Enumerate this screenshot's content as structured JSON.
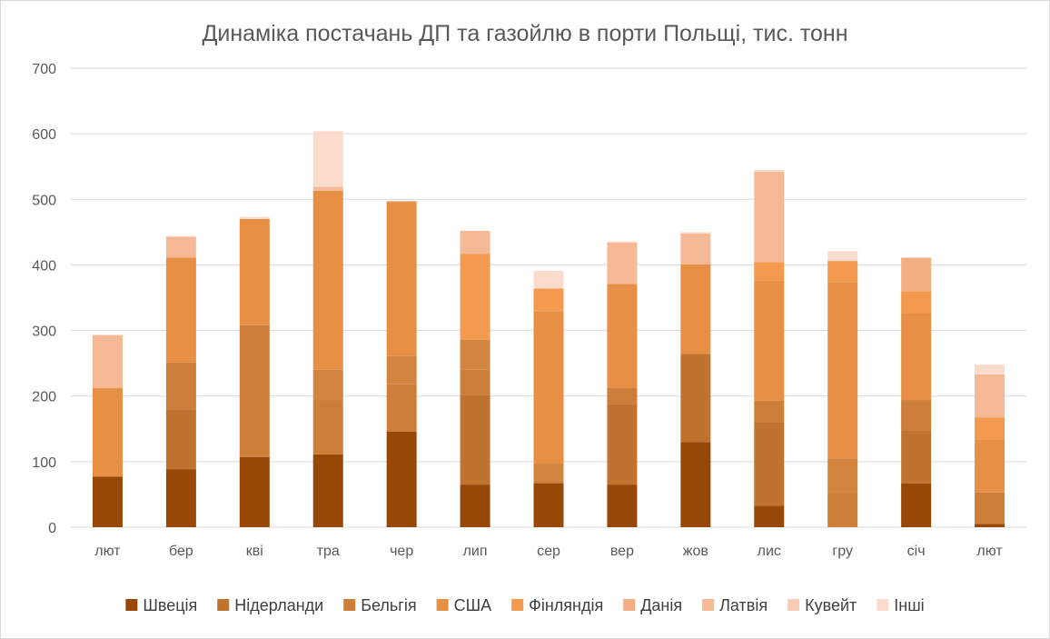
{
  "chart_data": {
    "type": "bar",
    "stacked": true,
    "title": "Динаміка постачань ДП та газойлю в порти Польщі, тис. тонн",
    "xlabel": "",
    "ylabel": "",
    "ylim": [
      0,
      700
    ],
    "yticks": [
      0,
      100,
      200,
      300,
      400,
      500,
      600,
      700
    ],
    "grid": true,
    "legend_position": "bottom",
    "categories": [
      "лют",
      "бер",
      "кві",
      "тра",
      "чер",
      "лип",
      "сер",
      "вер",
      "жов",
      "лис",
      "гру",
      "січ",
      "лют"
    ],
    "series": [
      {
        "name": "Швеція",
        "color": "#974706",
        "values": [
          77,
          88,
          107,
          111,
          146,
          65,
          67,
          65,
          130,
          33,
          0,
          67,
          5
        ]
      },
      {
        "name": "Нідерланди",
        "color": "#c0722f",
        "values": [
          0,
          92,
          0,
          0,
          0,
          137,
          0,
          123,
          134,
          127,
          0,
          80,
          0
        ]
      },
      {
        "name": "Бельгія",
        "color": "#cd7e39",
        "values": [
          0,
          71,
          201,
          83,
          72,
          38,
          3,
          25,
          0,
          33,
          52,
          47,
          48
        ]
      },
      {
        "name": "Бельгія",
        "color": "#d38540",
        "values": [
          0,
          0,
          0,
          46,
          43,
          46,
          27,
          0,
          0,
          0,
          53,
          0,
          0
        ]
      },
      {
        "name": "США",
        "color": "#e68f45",
        "values": [
          135,
          160,
          162,
          273,
          236,
          0,
          232,
          158,
          137,
          183,
          269,
          133,
          81
        ]
      },
      {
        "name": "Фінляндія",
        "color": "#f39a4e",
        "values": [
          0,
          0,
          0,
          0,
          0,
          131,
          35,
          0,
          0,
          28,
          32,
          33,
          33
        ]
      },
      {
        "name": "Данія",
        "color": "#f4ae83",
        "values": [
          0,
          0,
          0,
          0,
          0,
          0,
          0,
          0,
          0,
          0,
          0,
          51,
          0
        ]
      },
      {
        "name": "Латвія",
        "color": "#f6b995",
        "values": [
          81,
          32,
          0,
          6,
          0,
          35,
          0,
          63,
          47,
          138,
          0,
          0,
          66
        ]
      },
      {
        "name": "Кувейт",
        "color": "#f8ccb5",
        "values": [
          0,
          0,
          0,
          0,
          0,
          0,
          0,
          0,
          0,
          0,
          0,
          0,
          0
        ]
      },
      {
        "name": "Інші",
        "color": "#fadbcc",
        "values": [
          0,
          1,
          3,
          85,
          0,
          0,
          27,
          2,
          2,
          3,
          15,
          0,
          15
        ]
      }
    ]
  },
  "legend": [
    {
      "label": "Швеція",
      "color": "#974706"
    },
    {
      "label": "Нідерланди",
      "color": "#c0722f"
    },
    {
      "label": "Бельгія",
      "color": "#cd7e39"
    },
    {
      "label": "США",
      "color": "#e68f45"
    },
    {
      "label": "Фінляндія",
      "color": "#f39a4e"
    },
    {
      "label": "Данія",
      "color": "#f4ae83"
    },
    {
      "label": "Латвія",
      "color": "#f6b995"
    },
    {
      "label": "Кувейт",
      "color": "#f8ccb5"
    },
    {
      "label": "Інші",
      "color": "#fadbcc"
    }
  ]
}
